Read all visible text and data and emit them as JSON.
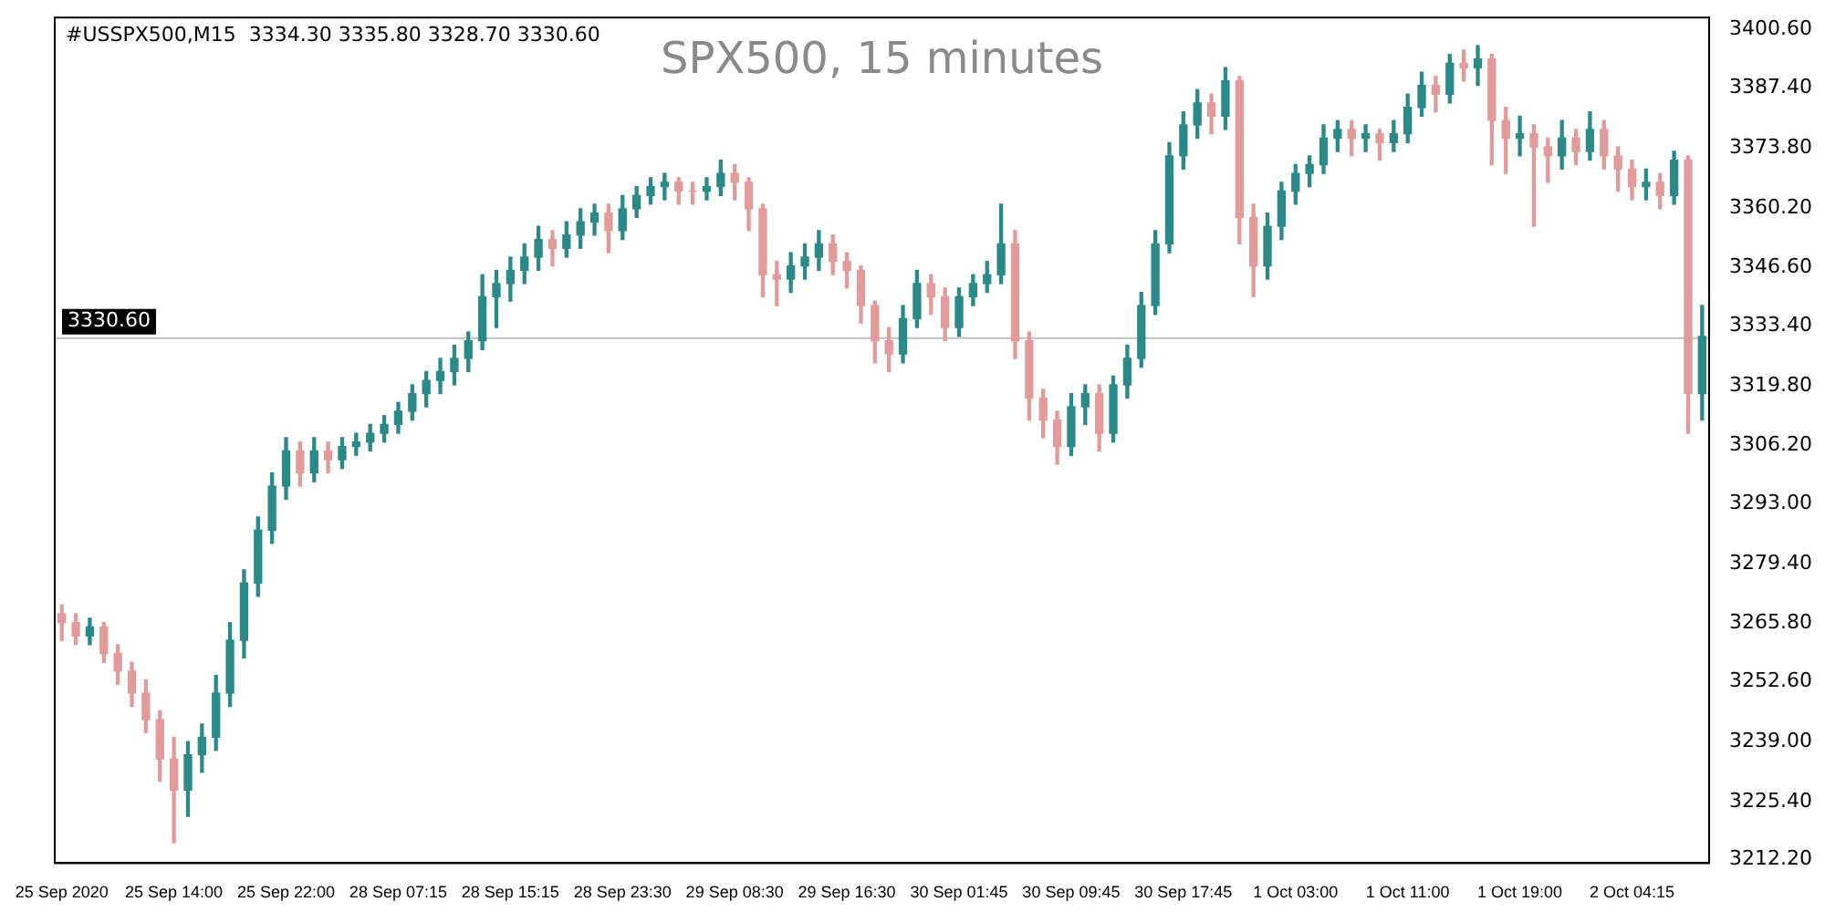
{
  "chart_data": {
    "type": "candlestick",
    "title": "SPX500, 15 minutes",
    "annotations": [
      "#USSPX500,M15  3334.30 3335.80 3328.70 3330.60"
    ],
    "categories": [
      "25 Sep 2020",
      null,
      null,
      null,
      null,
      null,
      null,
      null,
      "25 Sep 14:00",
      null,
      null,
      null,
      null,
      null,
      null,
      null,
      "25 Sep 22:00",
      null,
      null,
      null,
      null,
      null,
      null,
      null,
      "28 Sep 07:15",
      null,
      null,
      null,
      null,
      null,
      null,
      null,
      "28 Sep 15:15",
      null,
      null,
      null,
      null,
      null,
      null,
      null,
      "28 Sep 23:30",
      null,
      null,
      null,
      null,
      null,
      null,
      null,
      "29 Sep 08:30",
      null,
      null,
      null,
      null,
      null,
      null,
      null,
      "29 Sep 16:30",
      null,
      null,
      null,
      null,
      null,
      null,
      null,
      "30 Sep 01:45",
      null,
      null,
      null,
      null,
      null,
      null,
      null,
      "30 Sep 09:45",
      null,
      null,
      null,
      null,
      null,
      null,
      null,
      "30 Sep 17:45",
      null,
      null,
      null,
      null,
      null,
      null,
      null,
      "1 Oct 03:00",
      null,
      null,
      null,
      null,
      null,
      null,
      null,
      "1 Oct 11:00",
      null,
      null,
      null,
      null,
      null,
      null,
      null,
      "1 Oct 19:00",
      null,
      null,
      null,
      null,
      null,
      null,
      null,
      "2 Oct 04:15",
      null,
      null,
      null,
      null,
      null
    ],
    "ylim": [
      3211.4,
      3403.4
    ],
    "yticks": [
      {
        "value": 3212.2,
        "label": "3212.20"
      },
      {
        "value": 3225.4,
        "label": "3225.40"
      },
      {
        "value": 3239,
        "label": "3239.00"
      },
      {
        "value": 3252.6,
        "label": "3252.60"
      },
      {
        "value": 3265.8,
        "label": "3265.80"
      },
      {
        "value": 3279.4,
        "label": "3279.40"
      },
      {
        "value": 3293,
        "label": "3293.00"
      },
      {
        "value": 3306.2,
        "label": "3306.20"
      },
      {
        "value": 3319.8,
        "label": "3319.80"
      },
      {
        "value": 3333.4,
        "label": "3333.40"
      },
      {
        "value": 3346.6,
        "label": "3346.60"
      },
      {
        "value": 3360.2,
        "label": "3360.20"
      },
      {
        "value": 3373.8,
        "label": "3373.80"
      },
      {
        "value": 3387.4,
        "label": "3387.40"
      },
      {
        "value": 3400.6,
        "label": "3400.60"
      }
    ],
    "relative": false,
    "legend": false,
    "grid": false,
    "ref_lines": [
      {
        "axis": "y",
        "value": 3330.6,
        "label": "3330.60",
        "color": "#c0c0c0",
        "line_style": "solid"
      }
    ],
    "series": [
      {
        "ohlc": [
          [
            3268,
            3270,
            3262,
            3266
          ],
          [
            3266,
            3268,
            3261,
            3263
          ],
          [
            3263,
            3267,
            3261,
            3265
          ],
          [
            3265,
            3266,
            3257,
            3259
          ],
          [
            3259,
            3261,
            3252,
            3255
          ],
          [
            3255,
            3257,
            3247,
            3250
          ],
          [
            3250,
            3253,
            3241,
            3244
          ],
          [
            3244,
            3246,
            3230,
            3235
          ],
          [
            3235,
            3240,
            3216,
            3228
          ],
          [
            3228,
            3239,
            3222,
            3236
          ],
          [
            3236,
            3243,
            3232,
            3240
          ],
          [
            3240,
            3254,
            3237,
            3250
          ],
          [
            3250,
            3266,
            3247,
            3262
          ],
          [
            3262,
            3278,
            3258,
            3275
          ],
          [
            3275,
            3290,
            3272,
            3287
          ],
          [
            3287,
            3300,
            3284,
            3297
          ],
          [
            3297,
            3308,
            3294,
            3305
          ],
          [
            3305,
            3307,
            3297,
            3300
          ],
          [
            3300,
            3308,
            3298,
            3305
          ],
          [
            3305,
            3307,
            3300,
            3303
          ],
          [
            3303,
            3308,
            3301,
            3306
          ],
          [
            3306,
            3309,
            3304,
            3307
          ],
          [
            3307,
            3311,
            3305,
            3309
          ],
          [
            3309,
            3313,
            3307,
            3311
          ],
          [
            3311,
            3316,
            3309,
            3314
          ],
          [
            3314,
            3320,
            3312,
            3318
          ],
          [
            3318,
            3323,
            3315,
            3321
          ],
          [
            3321,
            3326,
            3318,
            3323
          ],
          [
            3323,
            3329,
            3320,
            3326
          ],
          [
            3326,
            3332,
            3323,
            3330
          ],
          [
            3330,
            3345,
            3328,
            3340
          ],
          [
            3340,
            3346,
            3333,
            3343
          ],
          [
            3343,
            3349,
            3339,
            3346
          ],
          [
            3346,
            3352,
            3343,
            3349
          ],
          [
            3349,
            3356,
            3346,
            3353
          ],
          [
            3353,
            3355,
            3347,
            3351
          ],
          [
            3351,
            3357,
            3349,
            3354
          ],
          [
            3354,
            3360,
            3351,
            3357
          ],
          [
            3357,
            3361,
            3354,
            3359
          ],
          [
            3359,
            3361,
            3350,
            3355
          ],
          [
            3355,
            3363,
            3353,
            3360
          ],
          [
            3360,
            3365,
            3358,
            3363
          ],
          [
            3363,
            3367,
            3361,
            3365
          ],
          [
            3365,
            3368,
            3362,
            3366
          ],
          [
            3366,
            3367,
            3361,
            3364
          ],
          [
            3364,
            3366,
            3361,
            3364
          ],
          [
            3364,
            3367,
            3362,
            3365
          ],
          [
            3365,
            3371,
            3363,
            3368
          ],
          [
            3368,
            3370,
            3362,
            3366
          ],
          [
            3366,
            3367,
            3355,
            3360
          ],
          [
            3360,
            3361,
            3340,
            3345
          ],
          [
            3345,
            3348,
            3338,
            3344
          ],
          [
            3344,
            3350,
            3341,
            3347
          ],
          [
            3347,
            3352,
            3344,
            3349
          ],
          [
            3349,
            3355,
            3346,
            3352
          ],
          [
            3352,
            3354,
            3345,
            3348
          ],
          [
            3348,
            3350,
            3342,
            3346
          ],
          [
            3346,
            3347,
            3334,
            3338
          ],
          [
            3338,
            3339,
            3325,
            3330
          ],
          [
            3330,
            3333,
            3323,
            3327
          ],
          [
            3327,
            3338,
            3325,
            3335
          ],
          [
            3335,
            3346,
            3333,
            3343
          ],
          [
            3343,
            3345,
            3336,
            3340
          ],
          [
            3340,
            3342,
            3330,
            3333
          ],
          [
            3333,
            3342,
            3331,
            3340
          ],
          [
            3340,
            3345,
            3338,
            3343
          ],
          [
            3343,
            3348,
            3341,
            3345
          ],
          [
            3345,
            3361,
            3343,
            3352
          ],
          [
            3352,
            3355,
            3326,
            3330
          ],
          [
            3330,
            3332,
            3312,
            3317
          ],
          [
            3317,
            3319,
            3308,
            3312
          ],
          [
            3312,
            3314,
            3302,
            3306
          ],
          [
            3306,
            3318,
            3304,
            3315
          ],
          [
            3315,
            3320,
            3311,
            3318
          ],
          [
            3318,
            3320,
            3305,
            3309
          ],
          [
            3309,
            3322,
            3307,
            3320
          ],
          [
            3320,
            3329,
            3317,
            3326
          ],
          [
            3326,
            3341,
            3324,
            3338
          ],
          [
            3338,
            3355,
            3336,
            3352
          ],
          [
            3352,
            3375,
            3350,
            3372
          ],
          [
            3372,
            3382,
            3369,
            3379
          ],
          [
            3379,
            3387,
            3376,
            3384
          ],
          [
            3384,
            3386,
            3377,
            3381
          ],
          [
            3381,
            3392,
            3378,
            3389
          ],
          [
            3389,
            3390,
            3352,
            3358
          ],
          [
            3358,
            3361,
            3340,
            3347
          ],
          [
            3347,
            3359,
            3344,
            3356
          ],
          [
            3356,
            3366,
            3353,
            3364
          ],
          [
            3364,
            3370,
            3361,
            3368
          ],
          [
            3368,
            3372,
            3365,
            3370
          ],
          [
            3370,
            3379,
            3368,
            3376
          ],
          [
            3376,
            3380,
            3373,
            3378
          ],
          [
            3378,
            3380,
            3372,
            3376
          ],
          [
            3376,
            3379,
            3373,
            3377
          ],
          [
            3377,
            3378,
            3371,
            3375
          ],
          [
            3375,
            3380,
            3373,
            3377
          ],
          [
            3377,
            3386,
            3375,
            3383
          ],
          [
            3383,
            3391,
            3381,
            3388
          ],
          [
            3388,
            3390,
            3382,
            3386
          ],
          [
            3386,
            3395,
            3384,
            3393
          ],
          [
            3393,
            3396,
            3389,
            3392
          ],
          [
            3392,
            3397,
            3388,
            3394
          ],
          [
            3394,
            3395,
            3370,
            3380
          ],
          [
            3380,
            3383,
            3368,
            3376
          ],
          [
            3376,
            3381,
            3372,
            3377
          ],
          [
            3377,
            3379,
            3356,
            3374
          ],
          [
            3374,
            3376,
            3366,
            3372
          ],
          [
            3372,
            3380,
            3369,
            3376
          ],
          [
            3376,
            3378,
            3370,
            3373
          ],
          [
            3373,
            3382,
            3371,
            3378
          ],
          [
            3378,
            3380,
            3369,
            3372
          ],
          [
            3372,
            3374,
            3364,
            3369
          ],
          [
            3369,
            3371,
            3362,
            3365
          ],
          [
            3365,
            3369,
            3362,
            3366
          ],
          [
            3366,
            3368,
            3360,
            3363
          ],
          [
            3363,
            3373,
            3361,
            3371
          ],
          [
            3371,
            3372,
            3309,
            3318
          ],
          [
            3318,
            3338,
            3312,
            3331
          ]
        ],
        "colors": [
          "#e39a9a",
          "#e39a9a",
          "#2a8a8a",
          "#e39a9a",
          "#e39a9a",
          "#e39a9a",
          "#e39a9a",
          "#e39a9a",
          "#e39a9a",
          "#2a8a8a",
          "#2a8a8a",
          "#2a8a8a",
          "#2a8a8a",
          "#2a8a8a",
          "#2a8a8a",
          "#2a8a8a",
          "#2a8a8a",
          "#e39a9a",
          "#2a8a8a",
          "#e39a9a",
          "#2a8a8a",
          "#2a8a8a",
          "#2a8a8a",
          "#2a8a8a",
          "#2a8a8a",
          "#2a8a8a",
          "#2a8a8a",
          "#2a8a8a",
          "#2a8a8a",
          "#2a8a8a",
          "#2a8a8a",
          "#2a8a8a",
          "#2a8a8a",
          "#2a8a8a",
          "#2a8a8a",
          "#e39a9a",
          "#2a8a8a",
          "#2a8a8a",
          "#2a8a8a",
          "#e39a9a",
          "#2a8a8a",
          "#2a8a8a",
          "#2a8a8a",
          "#2a8a8a",
          "#e39a9a",
          "#e39a9a",
          "#2a8a8a",
          "#2a8a8a",
          "#e39a9a",
          "#e39a9a",
          "#e39a9a",
          "#e39a9a",
          "#2a8a8a",
          "#2a8a8a",
          "#2a8a8a",
          "#e39a9a",
          "#e39a9a",
          "#e39a9a",
          "#e39a9a",
          "#e39a9a",
          "#2a8a8a",
          "#2a8a8a",
          "#e39a9a",
          "#e39a9a",
          "#2a8a8a",
          "#2a8a8a",
          "#2a8a8a",
          "#2a8a8a",
          "#e39a9a",
          "#e39a9a",
          "#e39a9a",
          "#e39a9a",
          "#2a8a8a",
          "#2a8a8a",
          "#e39a9a",
          "#2a8a8a",
          "#2a8a8a",
          "#2a8a8a",
          "#2a8a8a",
          "#2a8a8a",
          "#2a8a8a",
          "#2a8a8a",
          "#e39a9a",
          "#2a8a8a",
          "#e39a9a",
          "#e39a9a",
          "#2a8a8a",
          "#2a8a8a",
          "#2a8a8a",
          "#2a8a8a",
          "#2a8a8a",
          "#2a8a8a",
          "#e39a9a",
          "#2a8a8a",
          "#e39a9a",
          "#2a8a8a",
          "#2a8a8a",
          "#2a8a8a",
          "#e39a9a",
          "#2a8a8a",
          "#e39a9a",
          "#2a8a8a",
          "#e39a9a",
          "#e39a9a",
          "#2a8a8a",
          "#e39a9a",
          "#e39a9a",
          "#2a8a8a",
          "#e39a9a",
          "#2a8a8a",
          "#e39a9a",
          "#e39a9a",
          "#e39a9a",
          "#2a8a8a",
          "#e39a9a",
          "#2a8a8a",
          "#e39a9a",
          "#2a8a8a"
        ]
      }
    ]
  }
}
